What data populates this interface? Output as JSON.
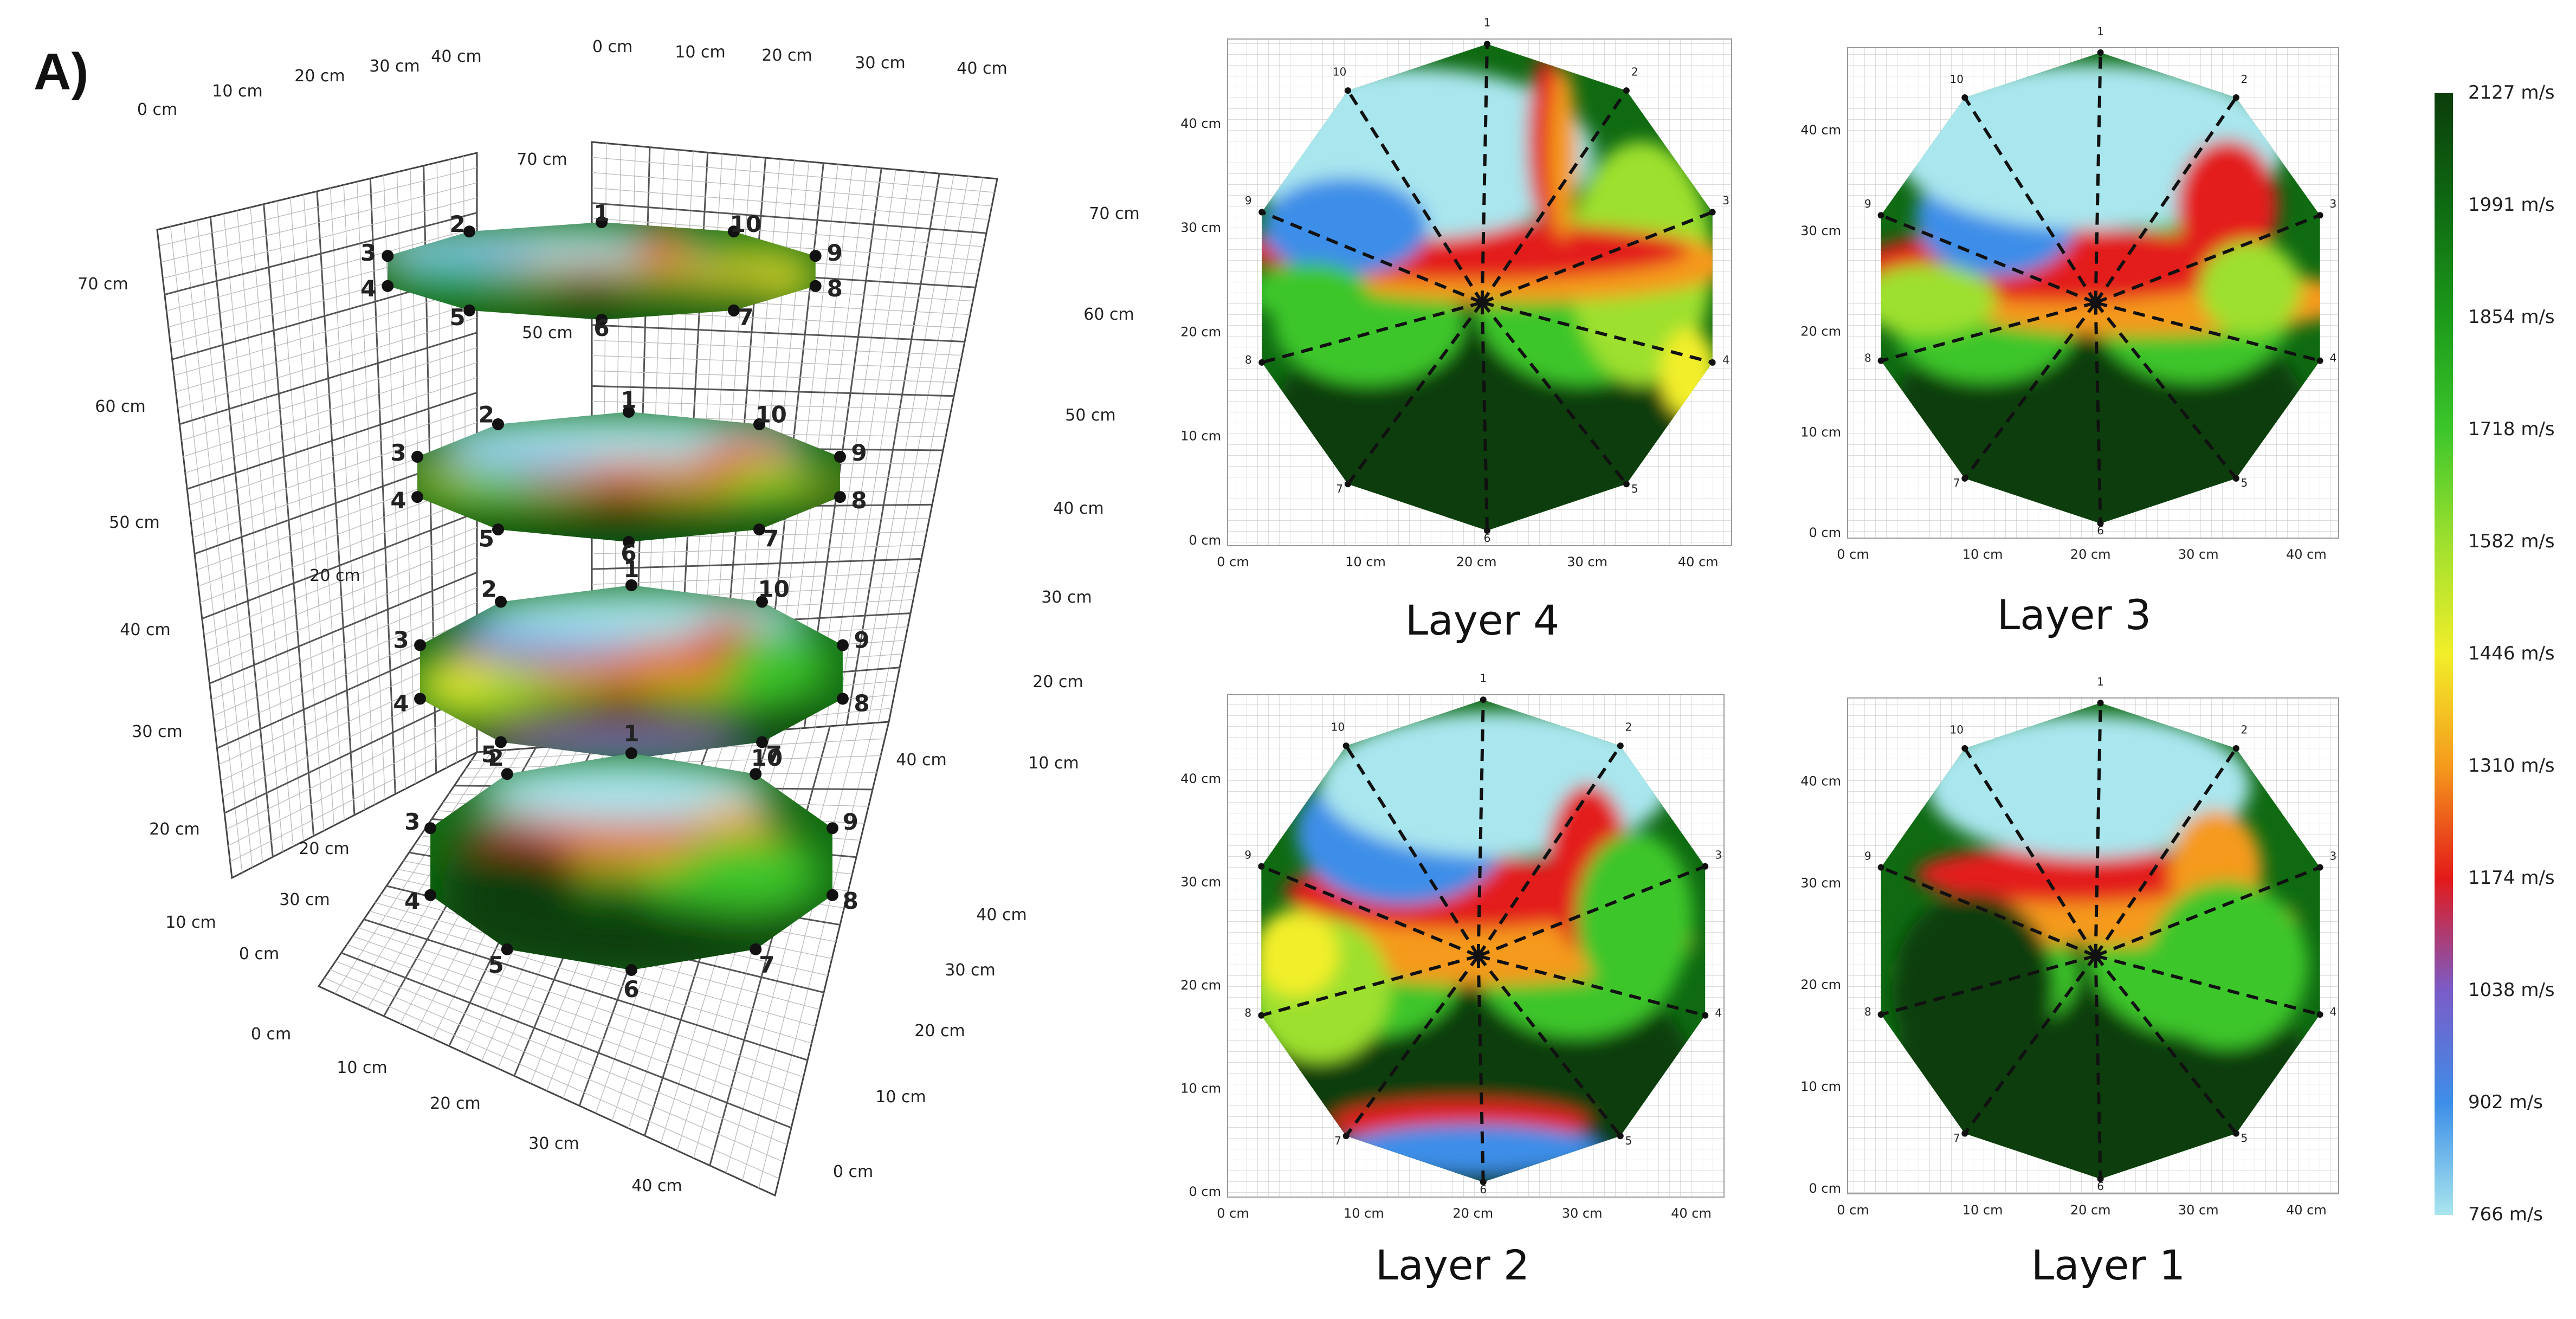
{
  "figure": {
    "panel_label": "A)",
    "layers": [
      {
        "id": "layer-4",
        "title": "Layer 4"
      },
      {
        "id": "layer-3",
        "title": "Layer 3"
      },
      {
        "id": "layer-2",
        "title": "Layer 2"
      },
      {
        "id": "layer-1",
        "title": "Layer 1"
      }
    ],
    "plan_x_ticks": [
      "0 cm",
      "10 cm",
      "20 cm",
      "30 cm",
      "40 cm"
    ],
    "plan_y_ticks": [
      "0 cm",
      "10 cm",
      "20 cm",
      "30 cm",
      "40 cm"
    ],
    "spoke_labels": [
      "1",
      "2",
      "3",
      "4",
      "5",
      "6",
      "7",
      "8",
      "9",
      "10"
    ],
    "colorbar": {
      "ticks": [
        "2127 m/s",
        "1991 m/s",
        "1854 m/s",
        "1718 m/s",
        "1582 m/s",
        "1446 m/s",
        "1310 m/s",
        "1174 m/s",
        "1038 m/s",
        "902 m/s",
        "766 m/s"
      ],
      "colors": [
        "#0b3d0b",
        "#0f6a12",
        "#1c9a1a",
        "#3cc62b",
        "#9ee02e",
        "#f2ee2a",
        "#f59a1c",
        "#e31a1a",
        "#7a5cc8",
        "#3d8ee8",
        "#a9e6ee"
      ]
    },
    "iso": {
      "back_left_ticks": [
        "0 cm",
        "10 cm",
        "20 cm",
        "30 cm",
        "40 cm"
      ],
      "back_right_ticks": [
        "0 cm",
        "10 cm",
        "20 cm",
        "30 cm",
        "40 cm"
      ],
      "left_z_ticks": [
        "70 cm",
        "60 cm",
        "50 cm",
        "40 cm",
        "30 cm",
        "20 cm",
        "10 cm",
        "0 cm"
      ],
      "right_z_ticks": [
        "70 cm",
        "60 cm",
        "50 cm",
        "40 cm",
        "30 cm",
        "20 cm",
        "10 cm"
      ],
      "floor_front_ticks": [
        "0 cm",
        "10 cm",
        "20 cm",
        "30 cm",
        "40 cm"
      ],
      "floor_right_ticks": [
        "0 cm",
        "10 cm",
        "20 cm",
        "30 cm",
        "40 cm"
      ],
      "inner_ticks": [
        "70 cm",
        "50 cm",
        "20 cm",
        "20 cm",
        "30 cm",
        "40 cm"
      ],
      "node_labels": [
        "1",
        "2",
        "3",
        "4",
        "5",
        "6",
        "7",
        "8",
        "9",
        "10"
      ]
    }
  }
}
